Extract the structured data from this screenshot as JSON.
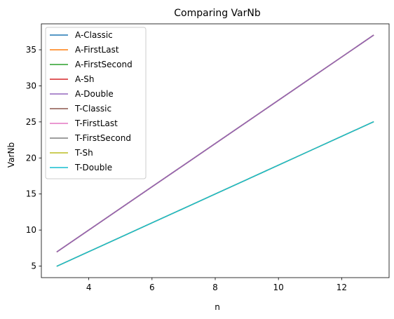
{
  "chart_data": {
    "type": "line",
    "title": "Comparing VarNb",
    "xlabel": "n",
    "ylabel": "VarNb",
    "xlim": [
      2.5,
      13.5
    ],
    "ylim": [
      3.4,
      38.6
    ],
    "xticks": [
      4,
      6,
      8,
      10,
      12
    ],
    "yticks": [
      5,
      10,
      15,
      20,
      25,
      30,
      35
    ],
    "grid": false,
    "legend_position": "top-left",
    "x": [
      3,
      4,
      5,
      6,
      7,
      8,
      9,
      10,
      11,
      12,
      13
    ],
    "series": [
      {
        "name": "A-Classic",
        "color": "#1f77b4",
        "values": [
          7,
          10,
          13,
          16,
          19,
          22,
          25,
          28,
          31,
          34,
          37
        ]
      },
      {
        "name": "A-FirstLast",
        "color": "#ff7f0e",
        "values": [
          7,
          10,
          13,
          16,
          19,
          22,
          25,
          28,
          31,
          34,
          37
        ]
      },
      {
        "name": "A-FirstSecond",
        "color": "#2ca02c",
        "values": [
          7,
          10,
          13,
          16,
          19,
          22,
          25,
          28,
          31,
          34,
          37
        ]
      },
      {
        "name": "A-Sh",
        "color": "#d62728",
        "values": [
          7,
          10,
          13,
          16,
          19,
          22,
          25,
          28,
          31,
          34,
          37
        ]
      },
      {
        "name": "A-Double",
        "color": "#9467bd",
        "values": [
          7,
          10,
          13,
          16,
          19,
          22,
          25,
          28,
          31,
          34,
          37
        ]
      },
      {
        "name": "T-Classic",
        "color": "#8c564b",
        "values": [
          5,
          7,
          9,
          11,
          13,
          15,
          17,
          19,
          21,
          23,
          25
        ]
      },
      {
        "name": "T-FirstLast",
        "color": "#e377c2",
        "values": [
          5,
          7,
          9,
          11,
          13,
          15,
          17,
          19,
          21,
          23,
          25
        ]
      },
      {
        "name": "T-FirstSecond",
        "color": "#7f7f7f",
        "values": [
          5,
          7,
          9,
          11,
          13,
          15,
          17,
          19,
          21,
          23,
          25
        ]
      },
      {
        "name": "T-Sh",
        "color": "#bcbd22",
        "values": [
          5,
          7,
          9,
          11,
          13,
          15,
          17,
          19,
          21,
          23,
          25
        ]
      },
      {
        "name": "T-Double",
        "color": "#17becf",
        "values": [
          5,
          7,
          9,
          11,
          13,
          15,
          17,
          19,
          21,
          23,
          25
        ]
      }
    ]
  }
}
